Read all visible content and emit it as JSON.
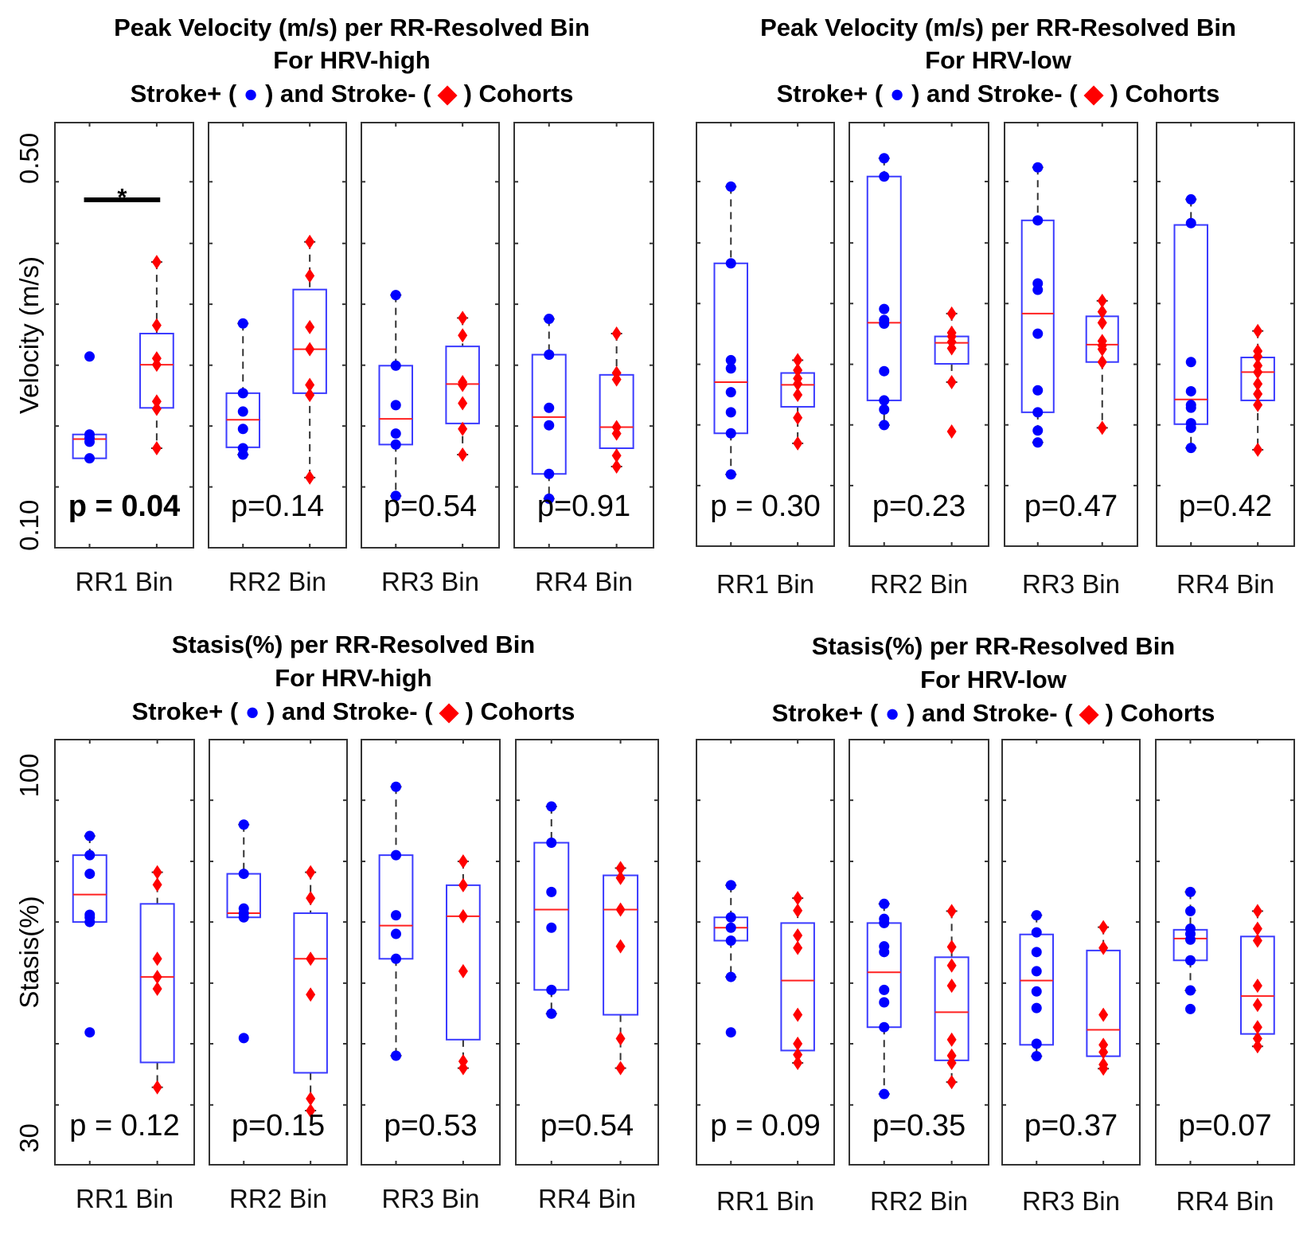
{
  "colors": {
    "stroke_pos": "#0000ff",
    "stroke_neg": "#ff0000",
    "box": "#3b3bff",
    "median": "#ff2020",
    "frame": "#333333"
  },
  "chart_data": [
    {
      "type": "box",
      "title": [
        "Peak Velocity (m/s) per RR-Resolved Bin",
        "For HRV-high"
      ],
      "legend": {
        "pre": "Stroke+ (",
        "mid": ") and Stroke- (",
        "post": ") Cohorts",
        "pos_marker": "●",
        "neg_marker": "◆"
      },
      "ylabel": "Velocity (m/s)",
      "ylim": [
        0.0755,
        0.539
      ],
      "ytick_labels": [
        {
          "value": 0.5,
          "label": "0.50"
        },
        {
          "value": 0.1,
          "label": "0.10"
        }
      ],
      "minor_ticks": [
        0.4745,
        0.4073,
        0.341,
        0.2745,
        0.2082,
        0.1418
      ],
      "significance": {
        "bin": 0,
        "symbol": "*"
      },
      "bins": [
        {
          "label": "RR1 Bin",
          "p": "p = 0.04",
          "p_bold": true,
          "pos": {
            "q1": 0.173,
            "median": 0.194,
            "q3": 0.199,
            "whisker": [
              0.173,
              0.199
            ],
            "points": [
              0.284,
              0.199,
              0.195,
              0.191,
              0.173
            ]
          },
          "neg": {
            "q1": 0.228,
            "median": 0.275,
            "q3": 0.309,
            "whisker": [
              0.184,
              0.387
            ],
            "points": [
              0.387,
              0.318,
              0.282,
              0.275,
              0.235,
              0.227,
              0.184
            ]
          }
        },
        {
          "label": "RR2 Bin",
          "p": "p=0.14",
          "p_bold": false,
          "pos": {
            "q1": 0.185,
            "median": 0.215,
            "q3": 0.244,
            "whisker": [
              0.177,
              0.32
            ],
            "points": [
              0.32,
              0.244,
              0.224,
              0.205,
              0.184,
              0.177
            ]
          },
          "neg": {
            "q1": 0.244,
            "median": 0.292,
            "q3": 0.357,
            "whisker": [
              0.152,
              0.409
            ],
            "points": [
              0.409,
              0.372,
              0.316,
              0.292,
              0.253,
              0.242,
              0.152
            ]
          }
        },
        {
          "label": "RR3 Bin",
          "p": "p=0.54",
          "p_bold": false,
          "pos": {
            "q1": 0.188,
            "median": 0.216,
            "q3": 0.274,
            "whisker": [
              0.132,
              0.351
            ],
            "points": [
              0.351,
              0.274,
              0.231,
              0.2,
              0.188,
              0.132
            ]
          },
          "neg": {
            "q1": 0.211,
            "median": 0.254,
            "q3": 0.295,
            "whisker": [
              0.177,
              0.326
            ],
            "points": [
              0.326,
              0.307,
              0.256,
              0.253,
              0.233,
              0.205,
              0.177
            ]
          }
        },
        {
          "label": "RR4 Bin",
          "p": "p=0.91",
          "p_bold": false,
          "pos": {
            "q1": 0.156,
            "median": 0.218,
            "q3": 0.286,
            "whisker": [
              0.129,
              0.325
            ],
            "points": [
              0.325,
              0.286,
              0.228,
              0.209,
              0.156,
              0.129
            ]
          },
          "neg": {
            "q1": 0.184,
            "median": 0.207,
            "q3": 0.264,
            "whisker": [
              0.164,
              0.309
            ],
            "points": [
              0.309,
              0.266,
              0.259,
              0.207,
              0.2,
              0.176,
              0.164
            ]
          }
        }
      ]
    },
    {
      "type": "box",
      "title": [
        "Peak Velocity (m/s) per RR-Resolved Bin",
        "For HRV-low"
      ],
      "legend": {
        "pre": "Stroke+ (",
        "mid": ") and Stroke- (",
        "post": ") Cohorts",
        "pos_marker": "●",
        "neg_marker": "◆"
      },
      "ylabel": "",
      "ylim": [
        0.0755,
        0.539
      ],
      "ytick_labels": [],
      "minor_ticks": [
        0.4745,
        0.4073,
        0.341,
        0.2745,
        0.2082,
        0.1418
      ],
      "bins": [
        {
          "label": "RR1 Bin",
          "p": "p = 0.30",
          "p_bold": false,
          "pos": {
            "q1": 0.199,
            "median": 0.255,
            "q3": 0.385,
            "whisker": [
              0.154,
              0.469
            ],
            "points": [
              0.469,
              0.385,
              0.279,
              0.27,
              0.244,
              0.222,
              0.199,
              0.154
            ]
          },
          "neg": {
            "q1": 0.228,
            "median": 0.252,
            "q3": 0.265,
            "whisker": [
              0.188,
              0.279
            ],
            "points": [
              0.279,
              0.268,
              0.259,
              0.253,
              0.241,
              0.216,
              0.188
            ]
          }
        },
        {
          "label": "RR2 Bin",
          "p": "p=0.23",
          "p_bold": false,
          "pos": {
            "q1": 0.235,
            "median": 0.32,
            "q3": 0.48,
            "whisker": [
              0.208,
              0.5
            ],
            "points": [
              0.5,
              0.48,
              0.335,
              0.323,
              0.319,
              0.267,
              0.235,
              0.225,
              0.208
            ]
          },
          "neg": {
            "q1": 0.275,
            "median": 0.298,
            "q3": 0.305,
            "whisker": [
              0.255,
              0.33
            ],
            "points": [
              0.33,
              0.309,
              0.305,
              0.299,
              0.292,
              0.255,
              0.201
            ]
          }
        },
        {
          "label": "RR3 Bin",
          "p": "p=0.47",
          "p_bold": false,
          "pos": {
            "q1": 0.222,
            "median": 0.33,
            "q3": 0.432,
            "whisker": [
              0.189,
              0.49
            ],
            "points": [
              0.49,
              0.432,
              0.363,
              0.356,
              0.308,
              0.246,
              0.222,
              0.202,
              0.189
            ]
          },
          "neg": {
            "q1": 0.277,
            "median": 0.296,
            "q3": 0.327,
            "whisker": [
              0.205,
              0.344
            ],
            "points": [
              0.344,
              0.332,
              0.32,
              0.3,
              0.295,
              0.291,
              0.277,
              0.205
            ]
          }
        },
        {
          "label": "RR4 Bin",
          "p": "p=0.42",
          "p_bold": false,
          "pos": {
            "q1": 0.209,
            "median": 0.236,
            "q3": 0.427,
            "whisker": [
              0.183,
              0.455
            ],
            "points": [
              0.455,
              0.429,
              0.277,
              0.245,
              0.23,
              0.227,
              0.21,
              0.205,
              0.183
            ]
          },
          "neg": {
            "q1": 0.235,
            "median": 0.266,
            "q3": 0.282,
            "whisker": [
              0.181,
              0.311
            ],
            "points": [
              0.311,
              0.289,
              0.283,
              0.273,
              0.266,
              0.253,
              0.242,
              0.23,
              0.181
            ]
          }
        }
      ]
    },
    {
      "type": "box",
      "title": [
        "Stasis(%) per RR-Resolved Bin",
        "For HRV-high"
      ],
      "legend": {
        "pre": "Stroke+ (",
        "mid": ") and Stroke- (",
        "post": ") Cohorts",
        "pos_marker": "●",
        "neg_marker": "◆"
      },
      "ylabel": "Stasis(%)",
      "ylim": [
        24.85,
        106.9
      ],
      "ytick_labels": [
        {
          "value": 100,
          "label": "100"
        },
        {
          "value": 30,
          "label": "30"
        }
      ],
      "minor_ticks": [
        95.2,
        83.4,
        71.7,
        59.9,
        48.2,
        36.4
      ],
      "bins": [
        {
          "label": "RR1 Bin",
          "p": "p = 0.12",
          "p_bold": false,
          "pos": {
            "q1": 71.7,
            "median": 77.0,
            "q3": 84.6,
            "whisker": [
              71.7,
              88.3
            ],
            "points": [
              88.3,
              84.6,
              81.0,
              73.1,
              72.6,
              71.7,
              50.4
            ]
          },
          "neg": {
            "q1": 44.6,
            "median": 61.1,
            "q3": 75.2,
            "whisker": [
              39.8,
              81.3
            ],
            "points": [
              81.3,
              78.9,
              64.6,
              61.1,
              58.8,
              39.8
            ]
          }
        },
        {
          "label": "RR2 Bin",
          "p": "p=0.15",
          "p_bold": false,
          "pos": {
            "q1": 72.6,
            "median": 73.4,
            "q3": 81.0,
            "whisker": [
              72.6,
              90.5
            ],
            "points": [
              90.5,
              81.0,
              74.3,
              73.4,
              72.6,
              49.3
            ]
          },
          "neg": {
            "q1": 42.6,
            "median": 64.6,
            "q3": 73.4,
            "whisker": [
              35.3,
              81.3
            ],
            "points": [
              81.3,
              76.3,
              64.6,
              57.7,
              37.6,
              35.3
            ]
          }
        },
        {
          "label": "RR3 Bin",
          "p": "p=0.53",
          "p_bold": false,
          "pos": {
            "q1": 64.6,
            "median": 71.0,
            "q3": 84.6,
            "whisker": [
              45.9,
              97.8
            ],
            "points": [
              97.8,
              84.6,
              73.0,
              69.4,
              64.6,
              45.9
            ]
          },
          "neg": {
            "q1": 49.0,
            "median": 72.8,
            "q3": 78.8,
            "whisker": [
              43.5,
              83.4
            ],
            "points": [
              83.4,
              78.8,
              72.8,
              62.2,
              44.8,
              43.5
            ]
          }
        },
        {
          "label": "RR4 Bin",
          "p": "p=0.54",
          "p_bold": false,
          "pos": {
            "q1": 58.6,
            "median": 74.1,
            "q3": 87.0,
            "whisker": [
              54.0,
              94.0
            ],
            "points": [
              94.0,
              87.0,
              77.5,
              70.6,
              58.6,
              54.0
            ]
          },
          "neg": {
            "q1": 53.8,
            "median": 74.1,
            "q3": 80.7,
            "whisker": [
              43.5,
              82.1
            ],
            "points": [
              82.1,
              80.2,
              74.1,
              67.0,
              49.2,
              43.5
            ]
          }
        }
      ]
    },
    {
      "type": "box",
      "title": [
        "Stasis(%) per RR-Resolved Bin",
        "For HRV-low"
      ],
      "legend": {
        "pre": "Stroke+  (",
        "mid": ") and Stroke- (",
        "post": ") Cohorts",
        "pos_marker": "●",
        "neg_marker": "◆"
      },
      "ylabel": "",
      "ylim": [
        24.85,
        106.9
      ],
      "ytick_labels": [],
      "minor_ticks": [
        95.2,
        83.4,
        71.7,
        59.9,
        48.2,
        36.4
      ],
      "bins": [
        {
          "label": "RR1 Bin",
          "p": "p = 0.09",
          "p_bold": false,
          "pos": {
            "q1": 68.1,
            "median": 70.6,
            "q3": 72.6,
            "whisker": [
              61.1,
              78.8
            ],
            "points": [
              78.8,
              72.6,
              70.6,
              68.1,
              61.1,
              50.4
            ]
          },
          "neg": {
            "q1": 46.9,
            "median": 60.4,
            "q3": 71.5,
            "whisker": [
              44.5,
              76.3
            ],
            "points": [
              76.3,
              73.9,
              69.1,
              66.7,
              53.8,
              48.2,
              46.1,
              44.5
            ]
          }
        },
        {
          "label": "RR2 Bin",
          "p": "p=0.35",
          "p_bold": false,
          "pos": {
            "q1": 51.4,
            "median": 62.0,
            "q3": 71.5,
            "whisker": [
              38.5,
              75.2
            ],
            "points": [
              75.2,
              72.3,
              71.5,
              67.0,
              65.9,
              58.6,
              56.2,
              51.4,
              38.5
            ]
          },
          "neg": {
            "q1": 45.0,
            "median": 54.3,
            "q3": 64.9,
            "whisker": [
              40.8,
              73.8
            ],
            "points": [
              73.8,
              66.9,
              63.3,
              59.4,
              49.0,
              45.9,
              44.5,
              40.8
            ]
          }
        },
        {
          "label": "RR3 Bin",
          "p": "p=0.37",
          "p_bold": false,
          "pos": {
            "q1": 48.0,
            "median": 60.4,
            "q3": 69.3,
            "whisker": [
              45.8,
              73.0
            ],
            "points": [
              73.0,
              69.7,
              65.9,
              62.2,
              58.3,
              55.1,
              48.2,
              45.8
            ]
          },
          "neg": {
            "q1": 45.8,
            "median": 50.9,
            "q3": 66.2,
            "whisker": [
              43.4,
              70.7
            ],
            "points": [
              70.7,
              66.7,
              53.8,
              48.0,
              46.6,
              44.2,
              43.4
            ]
          }
        },
        {
          "label": "RR4 Bin",
          "p": "p=0.07",
          "p_bold": false,
          "pos": {
            "q1": 64.3,
            "median": 68.5,
            "q3": 70.2,
            "whisker": [
              58.5,
              77.5
            ],
            "points": [
              77.5,
              73.8,
              70.4,
              69.4,
              68.3,
              64.3,
              58.5,
              54.9
            ]
          },
          "neg": {
            "q1": 50.1,
            "median": 57.4,
            "q3": 68.9,
            "whisker": [
              47.7,
              73.8
            ],
            "points": [
              73.8,
              70.4,
              68.1,
              59.4,
              55.7,
              51.4,
              49.2,
              47.7
            ]
          }
        }
      ]
    }
  ]
}
